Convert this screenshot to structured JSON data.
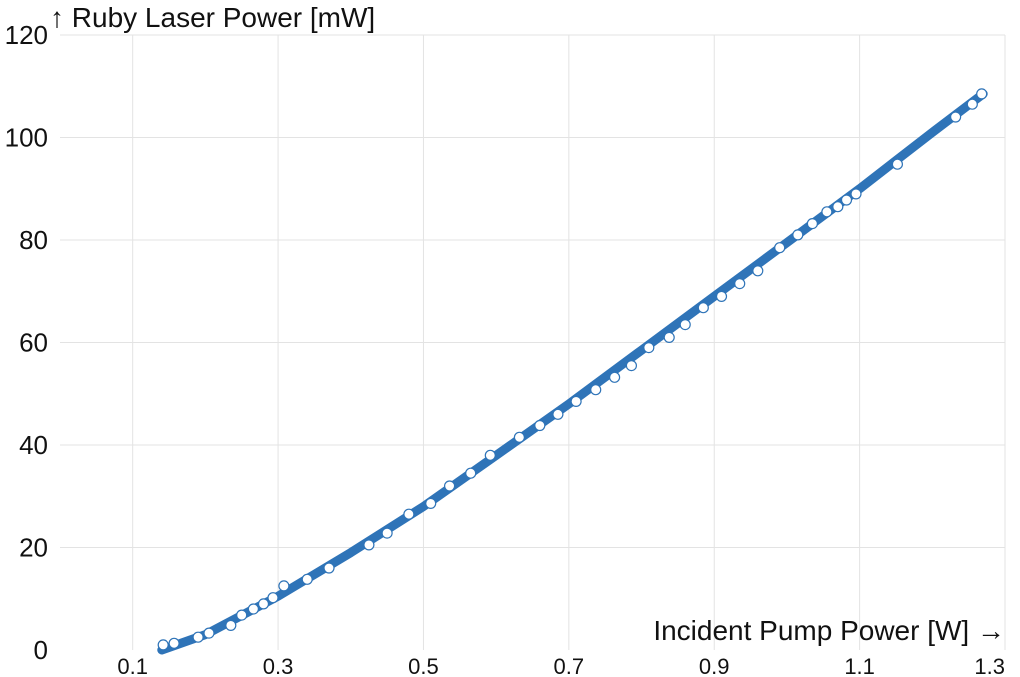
{
  "chart_data": {
    "type": "scatter",
    "title": "",
    "xlabel": "Incident Pump Power [W] →",
    "ylabel": "↑ Ruby Laser Power [mW]",
    "xlim": [
      0.0,
      1.3
    ],
    "ylim": [
      0,
      120
    ],
    "x_ticks": [
      0.1,
      0.3,
      0.5,
      0.7,
      0.9,
      1.1,
      1.3
    ],
    "x_tick_labels": [
      "0.1",
      "0.3",
      "0.5",
      "0.7",
      "0.9",
      "1.1",
      "1.3"
    ],
    "y_ticks": [
      0,
      20,
      40,
      60,
      80,
      100,
      120
    ],
    "y_tick_labels": [
      "0",
      "20",
      "40",
      "60",
      "80",
      "100",
      "120"
    ],
    "grid": true,
    "colors": {
      "fit_line": "#2f74b8",
      "marker_edge": "#2f74b8",
      "marker_fill": "#ffffff",
      "grid": "#e3e3e3"
    },
    "series": [
      {
        "kind": "fit-line",
        "x": [
          0.14,
          0.2,
          0.3,
          0.4,
          0.5,
          0.6,
          0.7,
          0.8,
          0.9,
          1.0,
          1.1,
          1.2,
          1.27
        ],
        "y": [
          0.0,
          3.0,
          10.5,
          19.0,
          28.0,
          38.0,
          48.0,
          58.5,
          69.0,
          79.5,
          90.0,
          101.0,
          108.5
        ]
      },
      {
        "kind": "measured-points",
        "x": [
          0.142,
          0.157,
          0.19,
          0.205,
          0.235,
          0.25,
          0.266,
          0.28,
          0.293,
          0.308,
          0.34,
          0.37,
          0.425,
          0.45,
          0.48,
          0.51,
          0.536,
          0.565,
          0.592,
          0.632,
          0.66,
          0.685,
          0.71,
          0.737,
          0.763,
          0.786,
          0.81,
          0.838,
          0.86,
          0.885,
          0.91,
          0.935,
          0.96,
          0.99,
          1.015,
          1.035,
          1.055,
          1.07,
          1.082,
          1.095,
          1.152,
          1.232,
          1.255,
          1.268
        ],
        "y": [
          1.0,
          1.3,
          2.5,
          3.3,
          4.8,
          6.8,
          8.0,
          9.0,
          10.2,
          12.5,
          13.8,
          16.0,
          20.5,
          22.8,
          26.5,
          28.6,
          32.0,
          34.5,
          38.0,
          41.5,
          43.8,
          46.0,
          48.5,
          50.8,
          53.2,
          55.5,
          59.0,
          61.0,
          63.5,
          66.8,
          69.0,
          71.5,
          74.0,
          78.5,
          81.0,
          83.2,
          85.5,
          86.5,
          87.8,
          89.0,
          94.8,
          104.0,
          106.5,
          108.5
        ]
      }
    ]
  }
}
